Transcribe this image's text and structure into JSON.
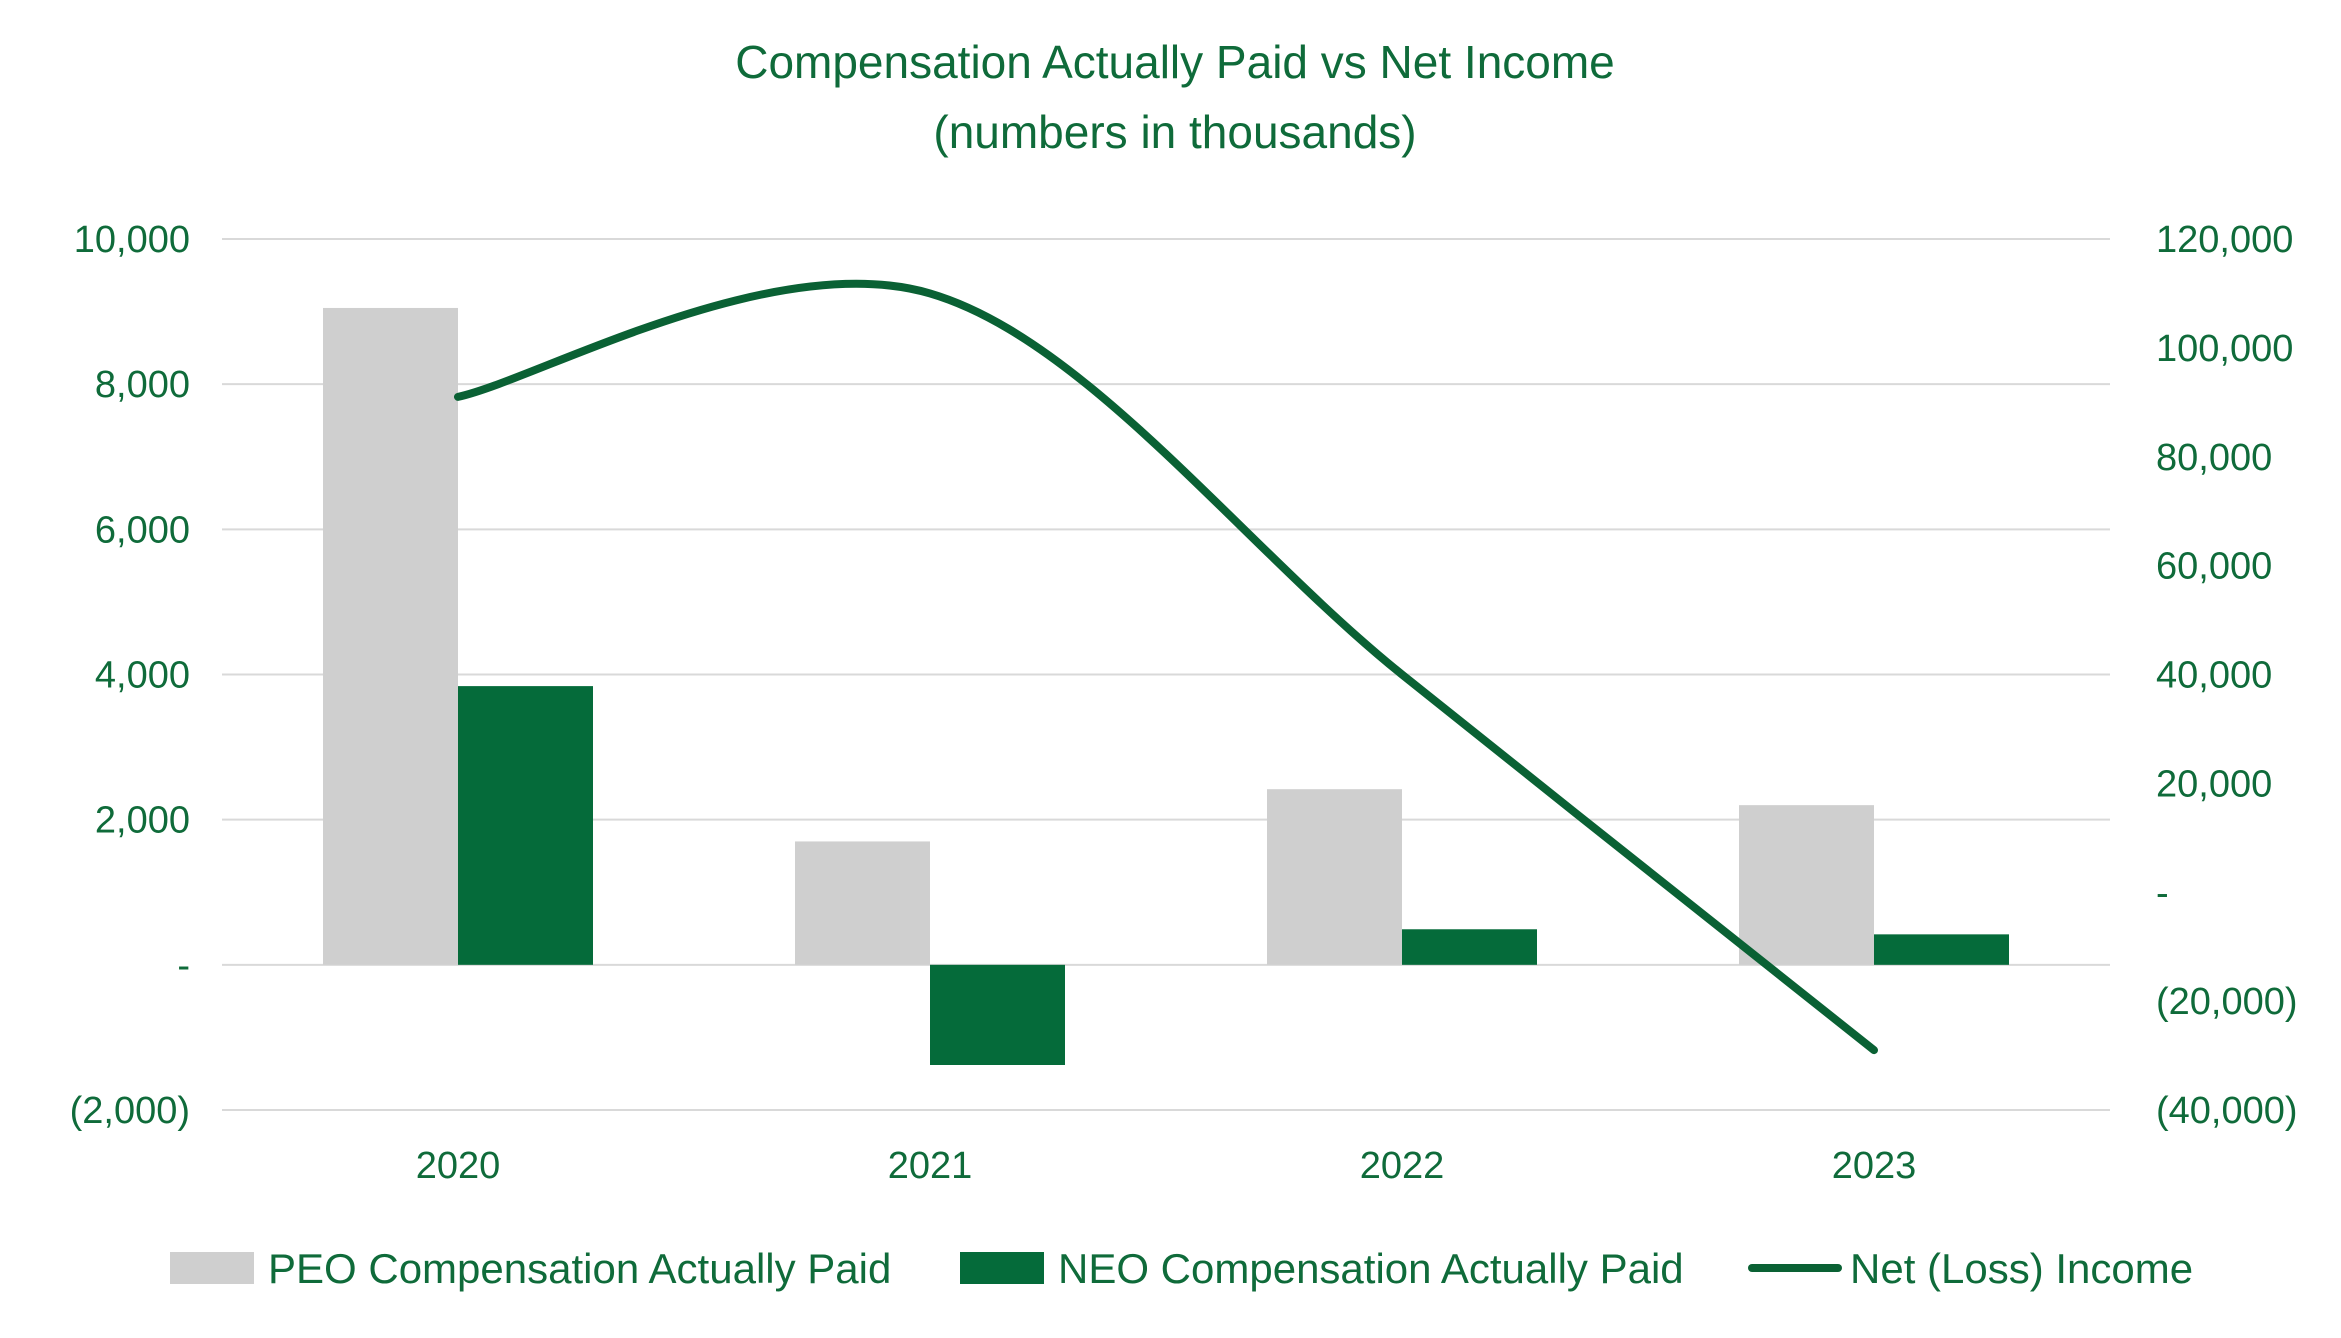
{
  "colors": {
    "text": "#0f6b3a",
    "peo": "#cfcfcf",
    "neo": "#056b3a",
    "line": "#0a6134",
    "grid": "#d9d9d9"
  },
  "chart_data": {
    "type": "bar",
    "title": "Compensation Actually Paid vs Net Income",
    "subtitle": "(numbers in thousands)",
    "categories": [
      "2020",
      "2021",
      "2022",
      "2023"
    ],
    "y_left": {
      "range": [
        -2000,
        10000
      ],
      "ticks": [
        -2000,
        0,
        2000,
        4000,
        6000,
        8000,
        10000
      ],
      "tick_labels": [
        "(2,000)",
        "-",
        "2,000",
        "4,000",
        "6,000",
        "8,000",
        "10,000"
      ]
    },
    "y_right": {
      "range": [
        -40000,
        120000
      ],
      "ticks": [
        -40000,
        -20000,
        0,
        20000,
        40000,
        60000,
        80000,
        100000,
        120000
      ],
      "tick_labels": [
        "(40,000)",
        "(20,000)",
        "-",
        "20,000",
        "40,000",
        "60,000",
        "80,000",
        "100,000",
        "120,000"
      ]
    },
    "grid": true,
    "legend_position": "bottom",
    "series": [
      {
        "name": "PEO Compensation Actually Paid",
        "type": "bar",
        "axis": "left",
        "values": [
          9050,
          1700,
          2420,
          2200
        ]
      },
      {
        "name": "NEO Compensation Actually Paid",
        "type": "bar",
        "axis": "left",
        "values": [
          3840,
          -1380,
          490,
          420
        ]
      },
      {
        "name": "Net (Loss) Income",
        "type": "line",
        "axis": "right",
        "smooth": true,
        "values": [
          91000,
          110000,
          40000,
          -29000
        ]
      }
    ]
  }
}
